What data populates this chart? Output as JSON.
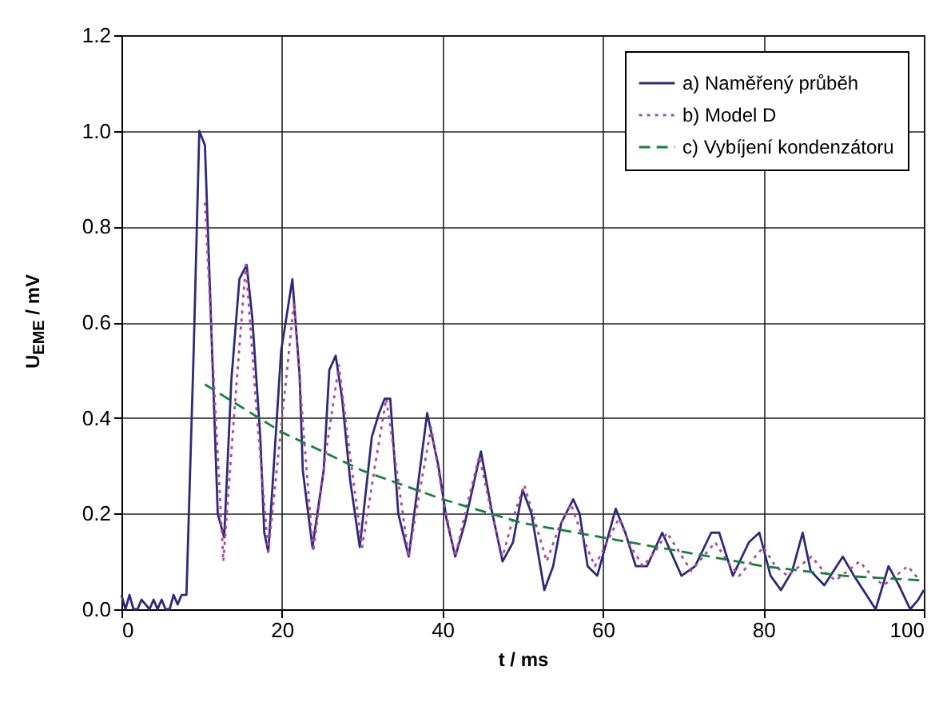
{
  "chart_data": {
    "type": "line",
    "xlabel": "t / ms",
    "ylabel": "U$_{EME}$ / mV",
    "xlim": [
      0,
      100
    ],
    "xticks": [
      0,
      20,
      40,
      60,
      80,
      100
    ],
    "ylim": [
      0,
      1.2
    ],
    "yticks": [
      {
        "value": 0,
        "label": "0.0"
      },
      {
        "value": 0.2,
        "label": "0.2"
      },
      {
        "value": 0.4,
        "label": "0.4"
      },
      {
        "value": 0.6,
        "label": "0.6"
      },
      {
        "value": 0.8,
        "label": "0.8"
      },
      {
        "value": 1.0,
        "label": "1.0"
      },
      {
        "value": 1.2,
        "label": "1.2"
      }
    ],
    "grid": true,
    "legend": "top right",
    "series": [
      {
        "name": "a) Naměřený průběh",
        "color": "#2e2a7a",
        "line_style": "solid",
        "x": [
          0,
          0.5,
          1,
          1.5,
          2,
          2.5,
          3,
          3.5,
          4,
          4.5,
          5,
          5.5,
          6,
          6.5,
          7,
          7.5,
          8.1,
          9.0,
          9.7,
          10.4,
          11.4,
          12.0,
          12.8,
          13.7,
          14.7,
          15.6,
          16.3,
          17.3,
          17.8,
          18.3,
          19.9,
          21.3,
          22.2,
          22.6,
          23.8,
          25.2,
          25.9,
          26.7,
          27.5,
          28.5,
          29.7,
          31.2,
          32.1,
          32.8,
          33.5,
          34.5,
          35.8,
          38.1,
          39.5,
          40.5,
          41.6,
          42.8,
          44.8,
          46.1,
          47.5,
          48.8,
          50.0,
          51.1,
          52.7,
          53.8,
          54.8,
          56.3,
          57.1,
          58.1,
          59.3,
          61.6,
          62.8,
          64.1,
          65.5,
          67.4,
          69.8,
          71.5,
          73.5,
          74.5,
          76.2,
          78.2,
          79.5,
          80.9,
          82.2,
          83.6,
          84.9,
          85.9,
          87.6,
          89.9,
          91.3,
          94.0,
          95.6,
          96.9,
          98.3,
          99.3,
          100
        ],
        "values": [
          0.03,
          0.0,
          0.03,
          0.0,
          0.0,
          0.02,
          0.01,
          0.0,
          0.02,
          0.0,
          0.02,
          0.0,
          0.0,
          0.03,
          0.01,
          0.03,
          0.03,
          0.54,
          1.0,
          0.97,
          0.49,
          0.2,
          0.15,
          0.48,
          0.69,
          0.72,
          0.61,
          0.36,
          0.16,
          0.12,
          0.54,
          0.69,
          0.49,
          0.29,
          0.13,
          0.29,
          0.5,
          0.53,
          0.44,
          0.27,
          0.13,
          0.36,
          0.41,
          0.44,
          0.44,
          0.2,
          0.11,
          0.41,
          0.3,
          0.19,
          0.11,
          0.18,
          0.33,
          0.21,
          0.1,
          0.14,
          0.25,
          0.2,
          0.04,
          0.09,
          0.18,
          0.23,
          0.2,
          0.09,
          0.07,
          0.21,
          0.16,
          0.09,
          0.09,
          0.16,
          0.07,
          0.09,
          0.16,
          0.16,
          0.07,
          0.14,
          0.16,
          0.07,
          0.04,
          0.08,
          0.16,
          0.08,
          0.05,
          0.11,
          0.07,
          0.0,
          0.09,
          0.05,
          0.0,
          0.02,
          0.04
        ]
      },
      {
        "name": "b) Model D",
        "color": "#b04aa0",
        "line_style": "dotted",
        "x": [
          10.4,
          11.6,
          12.7,
          14.1,
          15.5,
          16.9,
          18.3,
          19.9,
          21.5,
          22.7,
          23.9,
          25.5,
          27.1,
          28.5,
          30.0,
          31.5,
          33.0,
          34.4,
          35.8,
          37.2,
          38.6,
          40.1,
          41.6,
          43.1,
          44.6,
          46.0,
          47.5,
          48.8,
          50.2,
          51.6,
          53.0,
          54.5,
          56.0,
          57.5,
          59.0,
          60.5,
          62.0,
          63.5,
          65.0,
          66.5,
          68.0,
          69.5,
          71.0,
          72.5,
          74.0,
          75.5,
          77.0,
          78.5,
          80.0,
          81.5,
          83.0,
          84.5,
          86.0,
          87.5,
          89.0,
          90.5,
          92.0,
          93.5,
          95.0,
          96.5,
          98.0,
          99.5
        ],
        "values": [
          0.85,
          0.45,
          0.1,
          0.42,
          0.72,
          0.4,
          0.12,
          0.38,
          0.64,
          0.37,
          0.12,
          0.33,
          0.51,
          0.32,
          0.13,
          0.29,
          0.44,
          0.28,
          0.11,
          0.25,
          0.38,
          0.23,
          0.11,
          0.22,
          0.32,
          0.21,
          0.11,
          0.19,
          0.26,
          0.18,
          0.1,
          0.17,
          0.22,
          0.15,
          0.09,
          0.14,
          0.19,
          0.13,
          0.09,
          0.12,
          0.16,
          0.12,
          0.08,
          0.11,
          0.14,
          0.1,
          0.07,
          0.1,
          0.13,
          0.09,
          0.07,
          0.09,
          0.11,
          0.08,
          0.06,
          0.08,
          0.1,
          0.07,
          0.05,
          0.07,
          0.09,
          0.06
        ]
      },
      {
        "name": "c) Vybíjení kondenzátoru",
        "color": "#17813a",
        "line_style": "dashed",
        "x": [
          10.4,
          20,
          30,
          40,
          50,
          60,
          70,
          80,
          90,
          100
        ],
        "values": [
          0.47,
          0.37,
          0.29,
          0.23,
          0.18,
          0.15,
          0.12,
          0.09,
          0.07,
          0.06
        ]
      }
    ]
  }
}
